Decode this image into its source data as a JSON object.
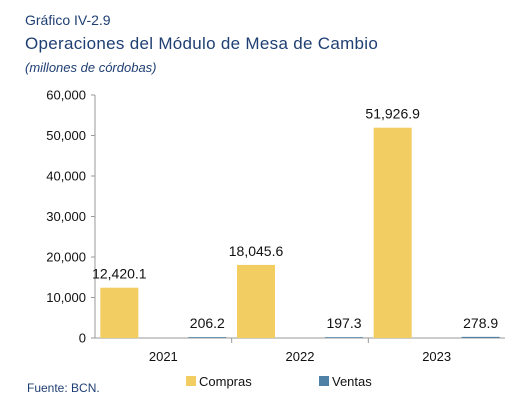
{
  "header": {
    "figure_label": "Gráfico IV-2.9",
    "title": "Operaciones del Módulo de Mesa de Cambio",
    "subtitle": "(millones de córdobas)"
  },
  "footer": {
    "source": "Fuente: BCN."
  },
  "chart_data": {
    "type": "bar",
    "categories": [
      "2021",
      "2022",
      "2023"
    ],
    "series": [
      {
        "name": "Compras",
        "values": [
          12420.1,
          18045.6,
          51926.9
        ],
        "labels": [
          "12,420.1",
          "18,045.6",
          "51,926.9"
        ],
        "color": "#f2cd62"
      },
      {
        "name": "Ventas",
        "values": [
          206.2,
          197.3,
          278.9
        ],
        "labels": [
          "206.2",
          "197.3",
          "278.9"
        ],
        "color": "#4f81a6"
      }
    ],
    "ylim": [
      0,
      60000
    ],
    "yticks": [
      0,
      10000,
      20000,
      30000,
      40000,
      50000,
      60000
    ],
    "ytick_labels": [
      "0",
      "10,000",
      "20,000",
      "30,000",
      "40,000",
      "50,000",
      "60,000"
    ],
    "legend": "bottom",
    "grid": false
  }
}
